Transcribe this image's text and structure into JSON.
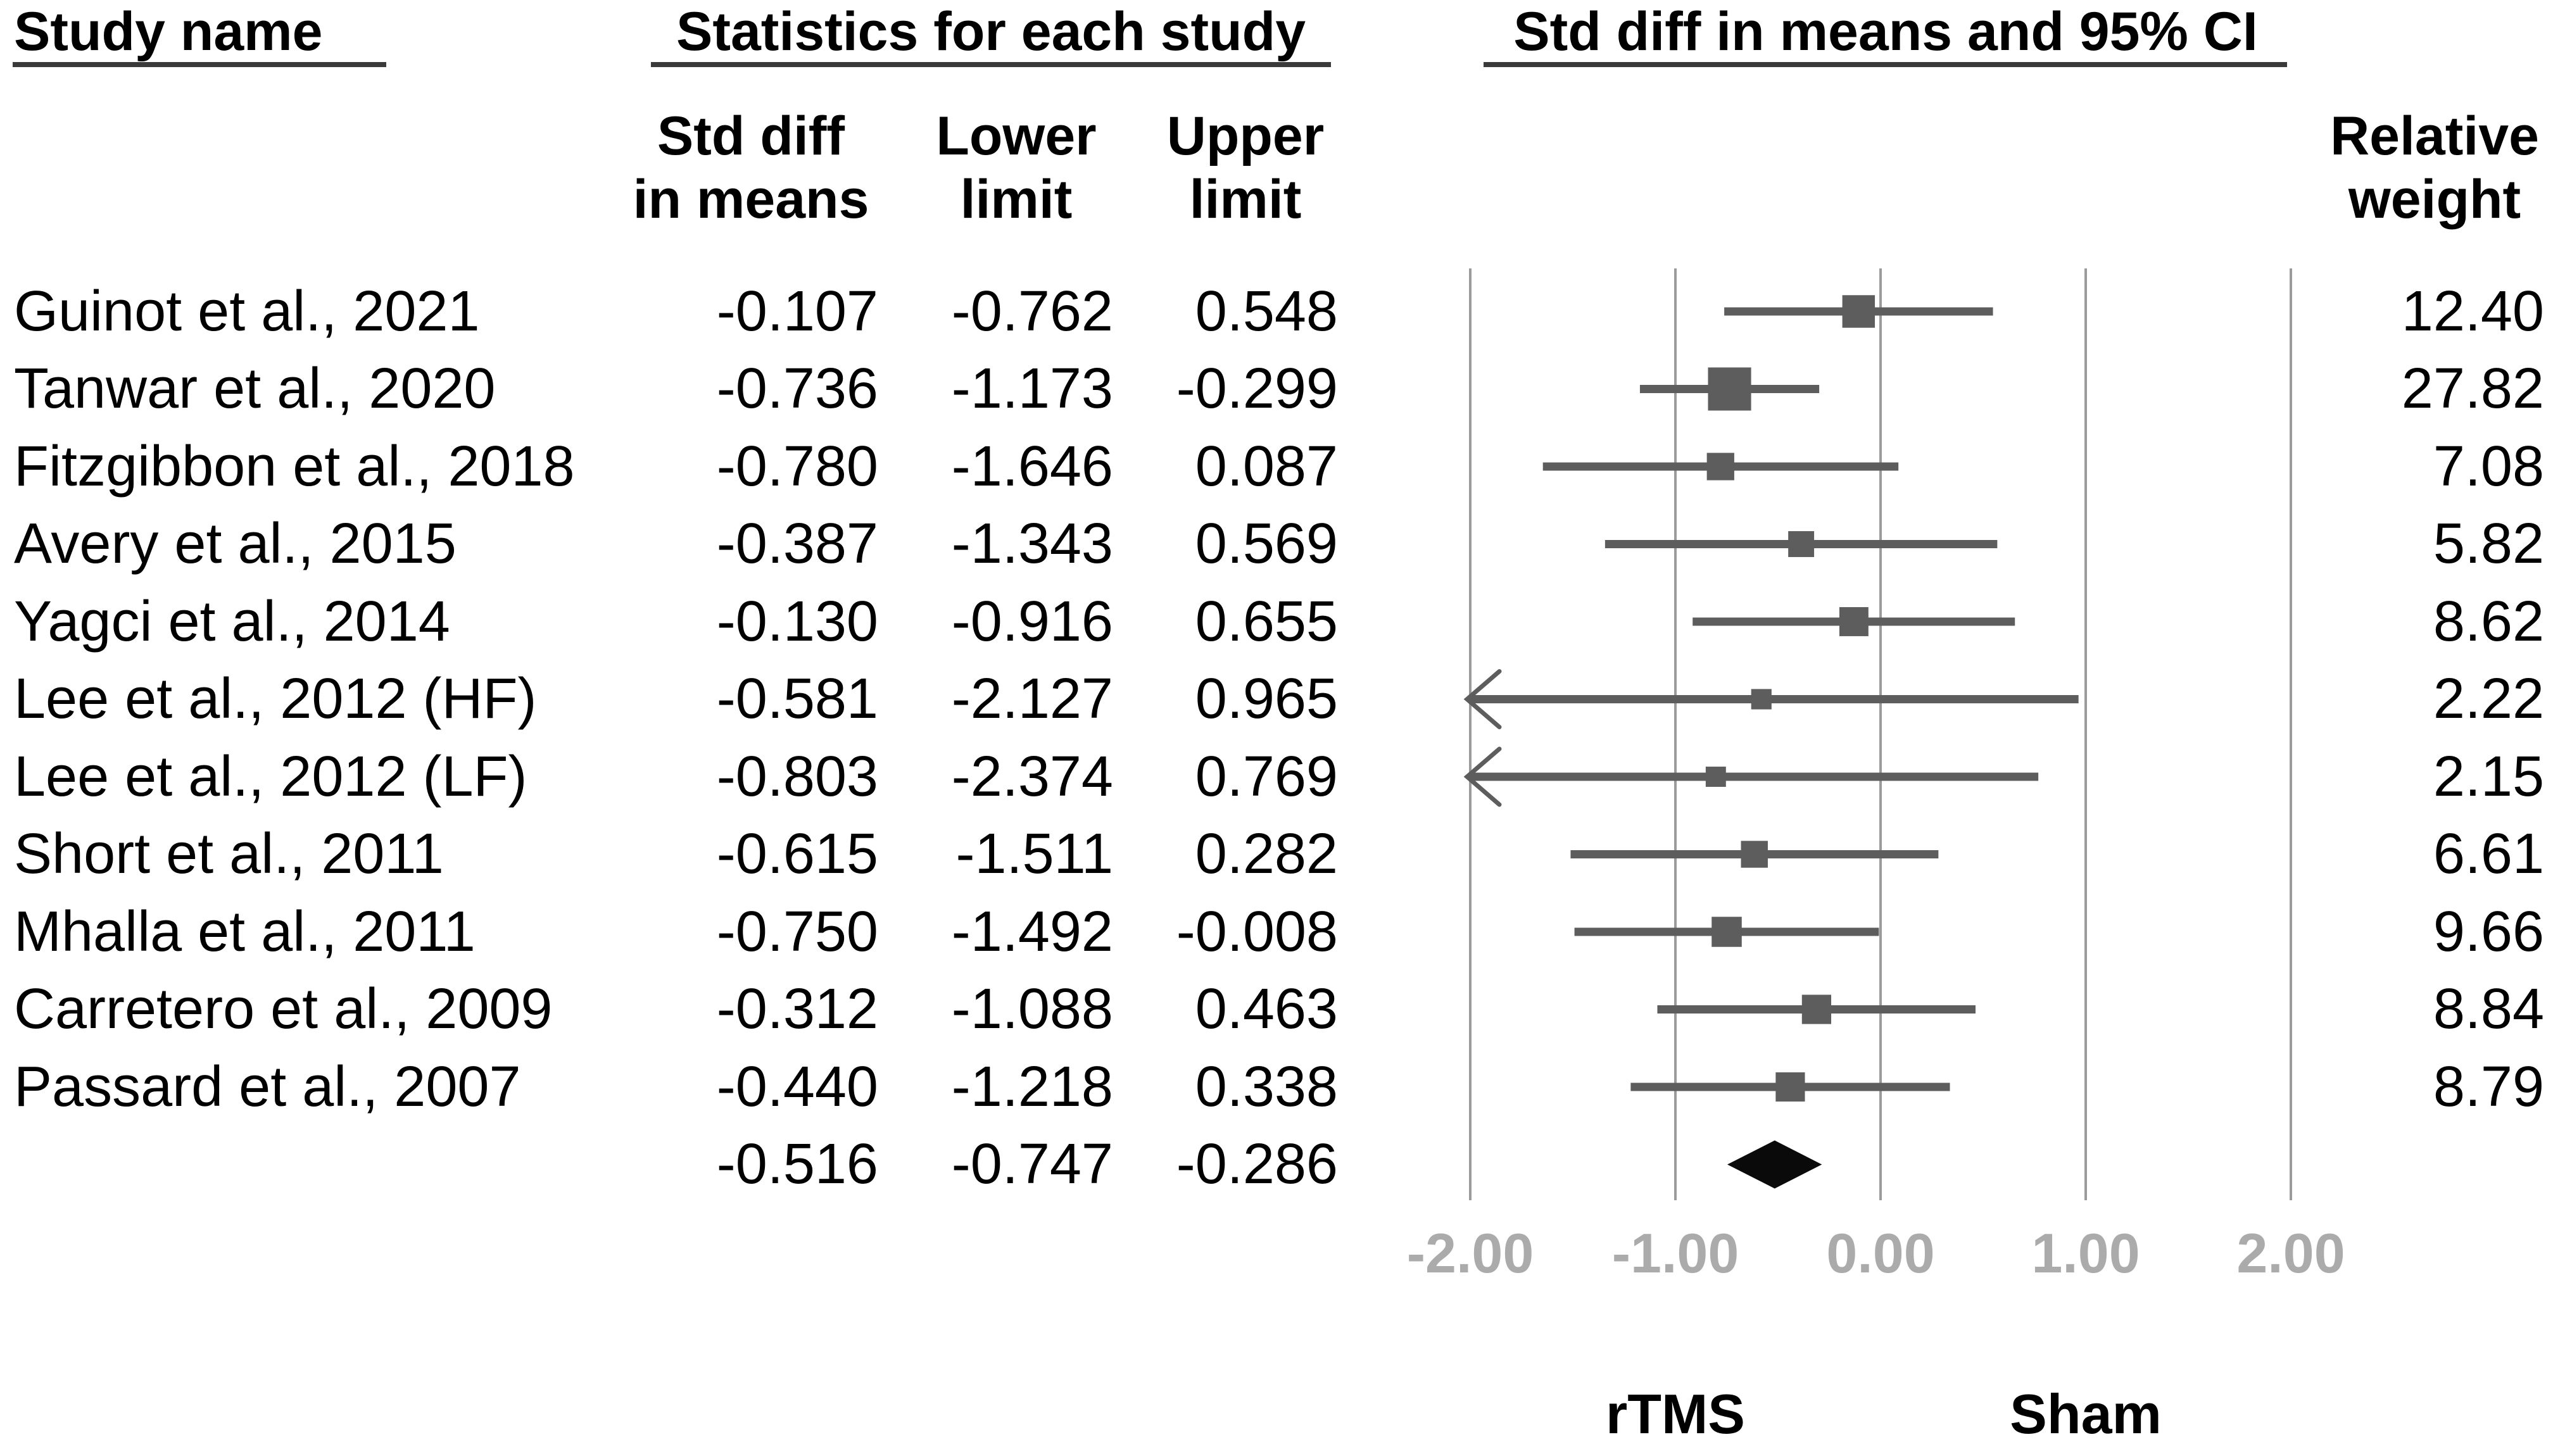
{
  "columns": {
    "study": "Study name",
    "stats_group": "Statistics for each study",
    "plot_group": "Std diff in means and 95% CI",
    "std_diff": [
      "Std diff",
      "in means"
    ],
    "lower": [
      "Lower",
      "limit"
    ],
    "upper": [
      "Upper",
      "limit"
    ],
    "weight": [
      "Relative",
      "weight"
    ]
  },
  "chart_data": {
    "type": "forest",
    "title": "Std diff in means and 95% CI",
    "x_axis": {
      "min": -2,
      "max": 2,
      "tick_values": [
        -2,
        -1,
        0,
        1,
        2
      ],
      "ticks": [
        "-2.00",
        "-1.00",
        "0.00",
        "1.00",
        "2.00"
      ],
      "grid": true
    },
    "group_labels": [
      {
        "label": "rTMS",
        "at": -1
      },
      {
        "label": "Sham",
        "at": 1
      }
    ],
    "studies": [
      {
        "name": "Guinot et al., 2021",
        "std_diff": "-0.107",
        "lower": "-0.762",
        "upper": "0.548",
        "weight": "12.40"
      },
      {
        "name": "Tanwar et al., 2020",
        "std_diff": "-0.736",
        "lower": "-1.173",
        "upper": "-0.299",
        "weight": "27.82"
      },
      {
        "name": "Fitzgibbon et al., 2018",
        "std_diff": "-0.780",
        "lower": "-1.646",
        "upper": "0.087",
        "weight": "7.08"
      },
      {
        "name": "Avery et al., 2015",
        "std_diff": "-0.387",
        "lower": "-1.343",
        "upper": "0.569",
        "weight": "5.82"
      },
      {
        "name": "Yagci et al., 2014",
        "std_diff": "-0.130",
        "lower": "-0.916",
        "upper": "0.655",
        "weight": "8.62"
      },
      {
        "name": "Lee et al., 2012 (HF)",
        "std_diff": "-0.581",
        "lower": "-2.127",
        "upper": "0.965",
        "weight": "2.22"
      },
      {
        "name": "Lee et al., 2012 (LF)",
        "std_diff": "-0.803",
        "lower": "-2.374",
        "upper": "0.769",
        "weight": "2.15"
      },
      {
        "name": "Short et al., 2011",
        "std_diff": "-0.615",
        "lower": "-1.511",
        "upper": "0.282",
        "weight": "6.61"
      },
      {
        "name": "Mhalla et al., 2011",
        "std_diff": "-0.750",
        "lower": "-1.492",
        "upper": "-0.008",
        "weight": "9.66"
      },
      {
        "name": "Carretero et al., 2009",
        "std_diff": "-0.312",
        "lower": "-1.088",
        "upper": "0.463",
        "weight": "8.84"
      },
      {
        "name": "Passard et al., 2007",
        "std_diff": "-0.440",
        "lower": "-1.218",
        "upper": "0.338",
        "weight": "8.79"
      }
    ],
    "overall": {
      "std_diff": "-0.516",
      "lower": "-0.747",
      "upper": "-0.286"
    }
  },
  "colors": {
    "marker": "#5d5d5d",
    "ci_line": "#5d5d5d",
    "grid_line": "#9b9b9b",
    "tick_label": "#ababab",
    "diamond": "#0a0a0a",
    "text": "#000000",
    "underline": "#3a3a3a"
  }
}
